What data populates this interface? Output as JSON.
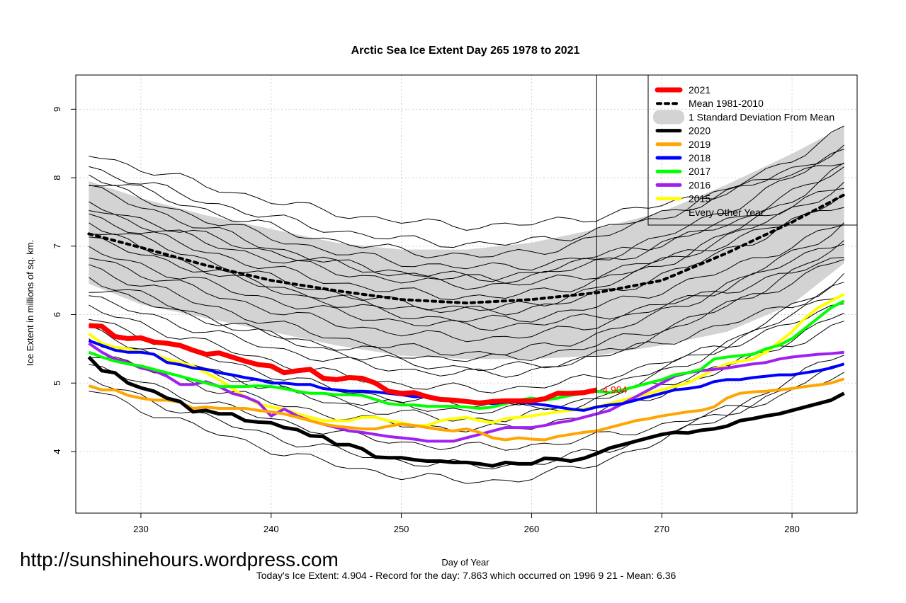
{
  "chart_data": {
    "type": "line",
    "title": "Arctic Sea Ice Extent Day 265 1978 to 2021",
    "xlabel": "Day of Year",
    "ylabel": "Ice Extent in millions of sq. km.",
    "xlim": [
      225,
      285
    ],
    "ylim": [
      3.1,
      9.5
    ],
    "x_ticks": [
      230,
      240,
      250,
      260,
      270,
      280
    ],
    "y_ticks": [
      4,
      5,
      6,
      7,
      8,
      9
    ],
    "grid": true,
    "current_day": 265,
    "current_value": 4.904,
    "current_value_label": "4.904",
    "footer": "Today's Ice Extent: 4.904  - Record for the day: 7.863 which occurred on 1996 9 21  - Mean: 6.36",
    "watermark": "http://sunshinehours.wordpress.com",
    "legend_position": "top-right",
    "legend": [
      {
        "label": "2021",
        "color": "#ff0000",
        "style": "thick"
      },
      {
        "label": "Mean 1981-2010",
        "color": "#000000",
        "style": "dotted"
      },
      {
        "label": "1 Standard Deviation From Mean",
        "color": "#d3d3d3",
        "style": "band"
      },
      {
        "label": "2020",
        "color": "#000000",
        "style": "solid"
      },
      {
        "label": "2019",
        "color": "#ffa500",
        "style": "solid"
      },
      {
        "label": "2018",
        "color": "#0000ff",
        "style": "solid"
      },
      {
        "label": "2017",
        "color": "#00ff00",
        "style": "solid"
      },
      {
        "label": "2016",
        "color": "#a020f0",
        "style": "solid"
      },
      {
        "label": "2015",
        "color": "#ffff00",
        "style": "solid"
      },
      {
        "label": "Every Other Year",
        "color": "#000000",
        "style": "thin"
      }
    ],
    "std_band": {
      "x": [
        226,
        230,
        235,
        240,
        245,
        250,
        255,
        260,
        265,
        270,
        275,
        280,
        284
      ],
      "upper": [
        7.95,
        7.7,
        7.45,
        7.25,
        7.05,
        6.95,
        6.95,
        7.05,
        7.25,
        7.5,
        7.9,
        8.35,
        8.75
      ],
      "lower": [
        6.45,
        6.15,
        5.95,
        5.75,
        5.55,
        5.4,
        5.35,
        5.35,
        5.4,
        5.55,
        5.75,
        6.15,
        6.75
      ]
    },
    "series": [
      {
        "name": "2021",
        "color": "#ff0000",
        "width": 7,
        "x": [
          226,
          227,
          228,
          229,
          230,
          231,
          232,
          233,
          234,
          235,
          236,
          237,
          238,
          239,
          240,
          241,
          242,
          243,
          244,
          245,
          246,
          247,
          248,
          249,
          250,
          251,
          252,
          253,
          254,
          255,
          256,
          257,
          258,
          259,
          260,
          261,
          262,
          263,
          264,
          265
        ],
        "y": [
          5.84,
          5.83,
          5.68,
          5.65,
          5.66,
          5.6,
          5.58,
          5.55,
          5.48,
          5.42,
          5.44,
          5.38,
          5.32,
          5.27,
          5.25,
          5.15,
          5.18,
          5.2,
          5.07,
          5.05,
          5.08,
          5.07,
          5.0,
          4.88,
          4.85,
          4.86,
          4.8,
          4.76,
          4.75,
          4.73,
          4.71,
          4.73,
          4.74,
          4.74,
          4.74,
          4.77,
          4.85,
          4.85,
          4.86,
          4.9
        ]
      },
      {
        "name": "Mean 1981-2010",
        "color": "#000000",
        "width": 4,
        "dash": "5,6",
        "x": [
          226,
          230,
          235,
          240,
          245,
          250,
          255,
          260,
          265,
          270,
          275,
          280,
          284
        ],
        "y": [
          7.18,
          6.98,
          6.72,
          6.5,
          6.35,
          6.22,
          6.17,
          6.22,
          6.32,
          6.5,
          6.9,
          7.35,
          7.75
        ]
      },
      {
        "name": "2020",
        "color": "#000000",
        "width": 5,
        "x": [
          226,
          227,
          228,
          229,
          230,
          231,
          232,
          233,
          234,
          235,
          236,
          237,
          238,
          239,
          240,
          241,
          242,
          243,
          244,
          245,
          246,
          247,
          248,
          249,
          250,
          251,
          252,
          253,
          254,
          255,
          256,
          257,
          258,
          259,
          260,
          261,
          262,
          263,
          264,
          265,
          266,
          267,
          268,
          269,
          270,
          271,
          272,
          273,
          274,
          275,
          276,
          277,
          278,
          279,
          280,
          281,
          282,
          283,
          284
        ],
        "y": [
          5.38,
          5.18,
          5.15,
          5.0,
          4.93,
          4.88,
          4.78,
          4.73,
          4.58,
          4.6,
          4.55,
          4.55,
          4.45,
          4.43,
          4.42,
          4.35,
          4.32,
          4.23,
          4.22,
          4.1,
          4.1,
          4.04,
          3.92,
          3.91,
          3.91,
          3.88,
          3.86,
          3.86,
          3.84,
          3.84,
          3.82,
          3.79,
          3.84,
          3.82,
          3.82,
          3.9,
          3.89,
          3.86,
          3.9,
          3.97,
          4.05,
          4.1,
          4.15,
          4.2,
          4.25,
          4.28,
          4.27,
          4.31,
          4.33,
          4.37,
          4.45,
          4.48,
          4.52,
          4.55,
          4.6,
          4.65,
          4.7,
          4.75,
          4.85
        ]
      },
      {
        "name": "2019",
        "color": "#ffa500",
        "width": 4,
        "x": [
          226,
          227,
          228,
          229,
          230,
          231,
          232,
          233,
          234,
          235,
          236,
          237,
          238,
          239,
          240,
          241,
          242,
          243,
          244,
          245,
          246,
          247,
          248,
          249,
          250,
          251,
          252,
          253,
          254,
          255,
          256,
          257,
          258,
          259,
          260,
          261,
          262,
          263,
          264,
          265,
          266,
          267,
          268,
          269,
          270,
          271,
          272,
          273,
          274,
          275,
          276,
          277,
          278,
          279,
          280,
          281,
          282,
          283,
          284
        ],
        "y": [
          4.96,
          4.9,
          4.9,
          4.82,
          4.78,
          4.75,
          4.75,
          4.72,
          4.63,
          4.65,
          4.63,
          4.63,
          4.63,
          4.6,
          4.58,
          4.55,
          4.5,
          4.45,
          4.4,
          4.37,
          4.35,
          4.33,
          4.33,
          4.37,
          4.4,
          4.38,
          4.35,
          4.32,
          4.3,
          4.33,
          4.28,
          4.2,
          4.17,
          4.2,
          4.18,
          4.17,
          4.22,
          4.25,
          4.28,
          4.3,
          4.35,
          4.4,
          4.45,
          4.48,
          4.52,
          4.55,
          4.58,
          4.6,
          4.65,
          4.78,
          4.85,
          4.87,
          4.88,
          4.9,
          4.92,
          4.95,
          4.97,
          5.0,
          5.06
        ]
      },
      {
        "name": "2018",
        "color": "#0000ff",
        "width": 4,
        "x": [
          226,
          227,
          228,
          229,
          230,
          231,
          232,
          233,
          234,
          235,
          236,
          237,
          238,
          239,
          240,
          241,
          242,
          243,
          244,
          245,
          246,
          247,
          248,
          249,
          250,
          251,
          252,
          253,
          254,
          255,
          256,
          257,
          258,
          259,
          260,
          261,
          262,
          263,
          264,
          265,
          266,
          267,
          268,
          269,
          270,
          271,
          272,
          273,
          274,
          275,
          276,
          277,
          278,
          279,
          280,
          281,
          282,
          283,
          284
        ],
        "y": [
          5.62,
          5.55,
          5.48,
          5.45,
          5.45,
          5.42,
          5.3,
          5.27,
          5.22,
          5.2,
          5.15,
          5.12,
          5.08,
          5.05,
          5.0,
          5.0,
          4.98,
          4.98,
          4.92,
          4.9,
          4.88,
          4.88,
          4.87,
          4.85,
          4.83,
          4.8,
          4.8,
          4.77,
          4.74,
          4.73,
          4.72,
          4.7,
          4.72,
          4.72,
          4.7,
          4.68,
          4.65,
          4.62,
          4.6,
          4.65,
          4.68,
          4.7,
          4.75,
          4.8,
          4.85,
          4.9,
          4.92,
          4.95,
          5.02,
          5.05,
          5.05,
          5.08,
          5.1,
          5.12,
          5.12,
          5.15,
          5.18,
          5.22,
          5.28
        ]
      },
      {
        "name": "2017",
        "color": "#00ff00",
        "width": 4,
        "x": [
          226,
          227,
          228,
          229,
          230,
          231,
          232,
          233,
          234,
          235,
          236,
          237,
          238,
          239,
          240,
          241,
          242,
          243,
          244,
          245,
          246,
          247,
          248,
          249,
          250,
          251,
          252,
          253,
          254,
          255,
          256,
          257,
          258,
          259,
          260,
          261,
          262,
          263,
          264,
          265,
          266,
          267,
          268,
          269,
          270,
          271,
          272,
          273,
          274,
          275,
          276,
          277,
          278,
          279,
          280,
          281,
          282,
          283,
          284
        ],
        "y": [
          5.45,
          5.38,
          5.32,
          5.28,
          5.25,
          5.2,
          5.15,
          5.1,
          5.05,
          5.0,
          4.95,
          4.95,
          4.95,
          4.96,
          4.95,
          4.92,
          4.88,
          4.85,
          4.85,
          4.83,
          4.83,
          4.82,
          4.76,
          4.7,
          4.68,
          4.68,
          4.66,
          4.66,
          4.66,
          4.65,
          4.63,
          4.65,
          4.7,
          4.75,
          4.78,
          4.75,
          4.78,
          4.82,
          4.85,
          4.88,
          4.86,
          4.9,
          4.95,
          5.0,
          5.05,
          5.12,
          5.15,
          5.2,
          5.35,
          5.38,
          5.4,
          5.42,
          5.5,
          5.55,
          5.65,
          5.8,
          5.95,
          6.1,
          6.2
        ]
      },
      {
        "name": "2016",
        "color": "#a020f0",
        "width": 4,
        "x": [
          226,
          227,
          228,
          229,
          230,
          231,
          232,
          233,
          234,
          235,
          236,
          237,
          238,
          239,
          240,
          241,
          242,
          243,
          244,
          245,
          246,
          247,
          248,
          249,
          250,
          251,
          252,
          253,
          254,
          255,
          256,
          257,
          258,
          259,
          260,
          261,
          262,
          263,
          264,
          265,
          266,
          267,
          268,
          269,
          270,
          271,
          272,
          273,
          274,
          275,
          276,
          277,
          278,
          279,
          280,
          281,
          282,
          283,
          284
        ],
        "y": [
          5.58,
          5.45,
          5.35,
          5.3,
          5.22,
          5.18,
          5.1,
          4.98,
          4.98,
          5.02,
          4.95,
          4.85,
          4.8,
          4.72,
          4.52,
          4.62,
          4.52,
          4.45,
          4.4,
          4.35,
          4.3,
          4.28,
          4.25,
          4.22,
          4.2,
          4.18,
          4.15,
          4.15,
          4.15,
          4.2,
          4.25,
          4.3,
          4.35,
          4.35,
          4.35,
          4.38,
          4.42,
          4.45,
          4.5,
          4.55,
          4.6,
          4.7,
          4.8,
          4.9,
          5.0,
          5.1,
          5.15,
          5.18,
          5.2,
          5.22,
          5.25,
          5.28,
          5.3,
          5.35,
          5.38,
          5.4,
          5.42,
          5.43,
          5.45
        ]
      },
      {
        "name": "2015",
        "color": "#ffff00",
        "width": 4,
        "x": [
          226,
          227,
          228,
          229,
          230,
          231,
          232,
          233,
          234,
          235,
          236,
          237,
          238,
          239,
          240,
          241,
          242,
          243,
          244,
          245,
          246,
          247,
          248,
          249,
          250,
          251,
          252,
          253,
          254,
          255,
          256,
          257,
          258,
          259,
          260,
          261,
          262,
          263,
          264,
          265,
          266,
          267,
          268,
          269,
          270,
          271,
          272,
          273,
          274,
          275,
          276,
          277,
          278,
          279,
          280,
          281,
          282,
          283,
          284
        ],
        "y": [
          5.72,
          5.58,
          5.52,
          5.5,
          5.45,
          5.42,
          5.35,
          5.3,
          5.25,
          5.15,
          5.05,
          4.92,
          4.8,
          4.7,
          4.65,
          4.62,
          4.55,
          4.5,
          4.45,
          4.45,
          4.45,
          4.5,
          4.5,
          4.45,
          4.42,
          4.38,
          4.38,
          4.45,
          4.48,
          4.5,
          4.45,
          4.42,
          4.48,
          4.5,
          4.52,
          4.55,
          4.58,
          4.6,
          4.62,
          4.65,
          4.7,
          4.75,
          4.8,
          4.85,
          4.9,
          4.95,
          5.0,
          5.1,
          5.2,
          5.28,
          5.32,
          5.35,
          5.45,
          5.6,
          5.75,
          5.95,
          6.1,
          6.2,
          6.3
        ]
      }
    ]
  }
}
